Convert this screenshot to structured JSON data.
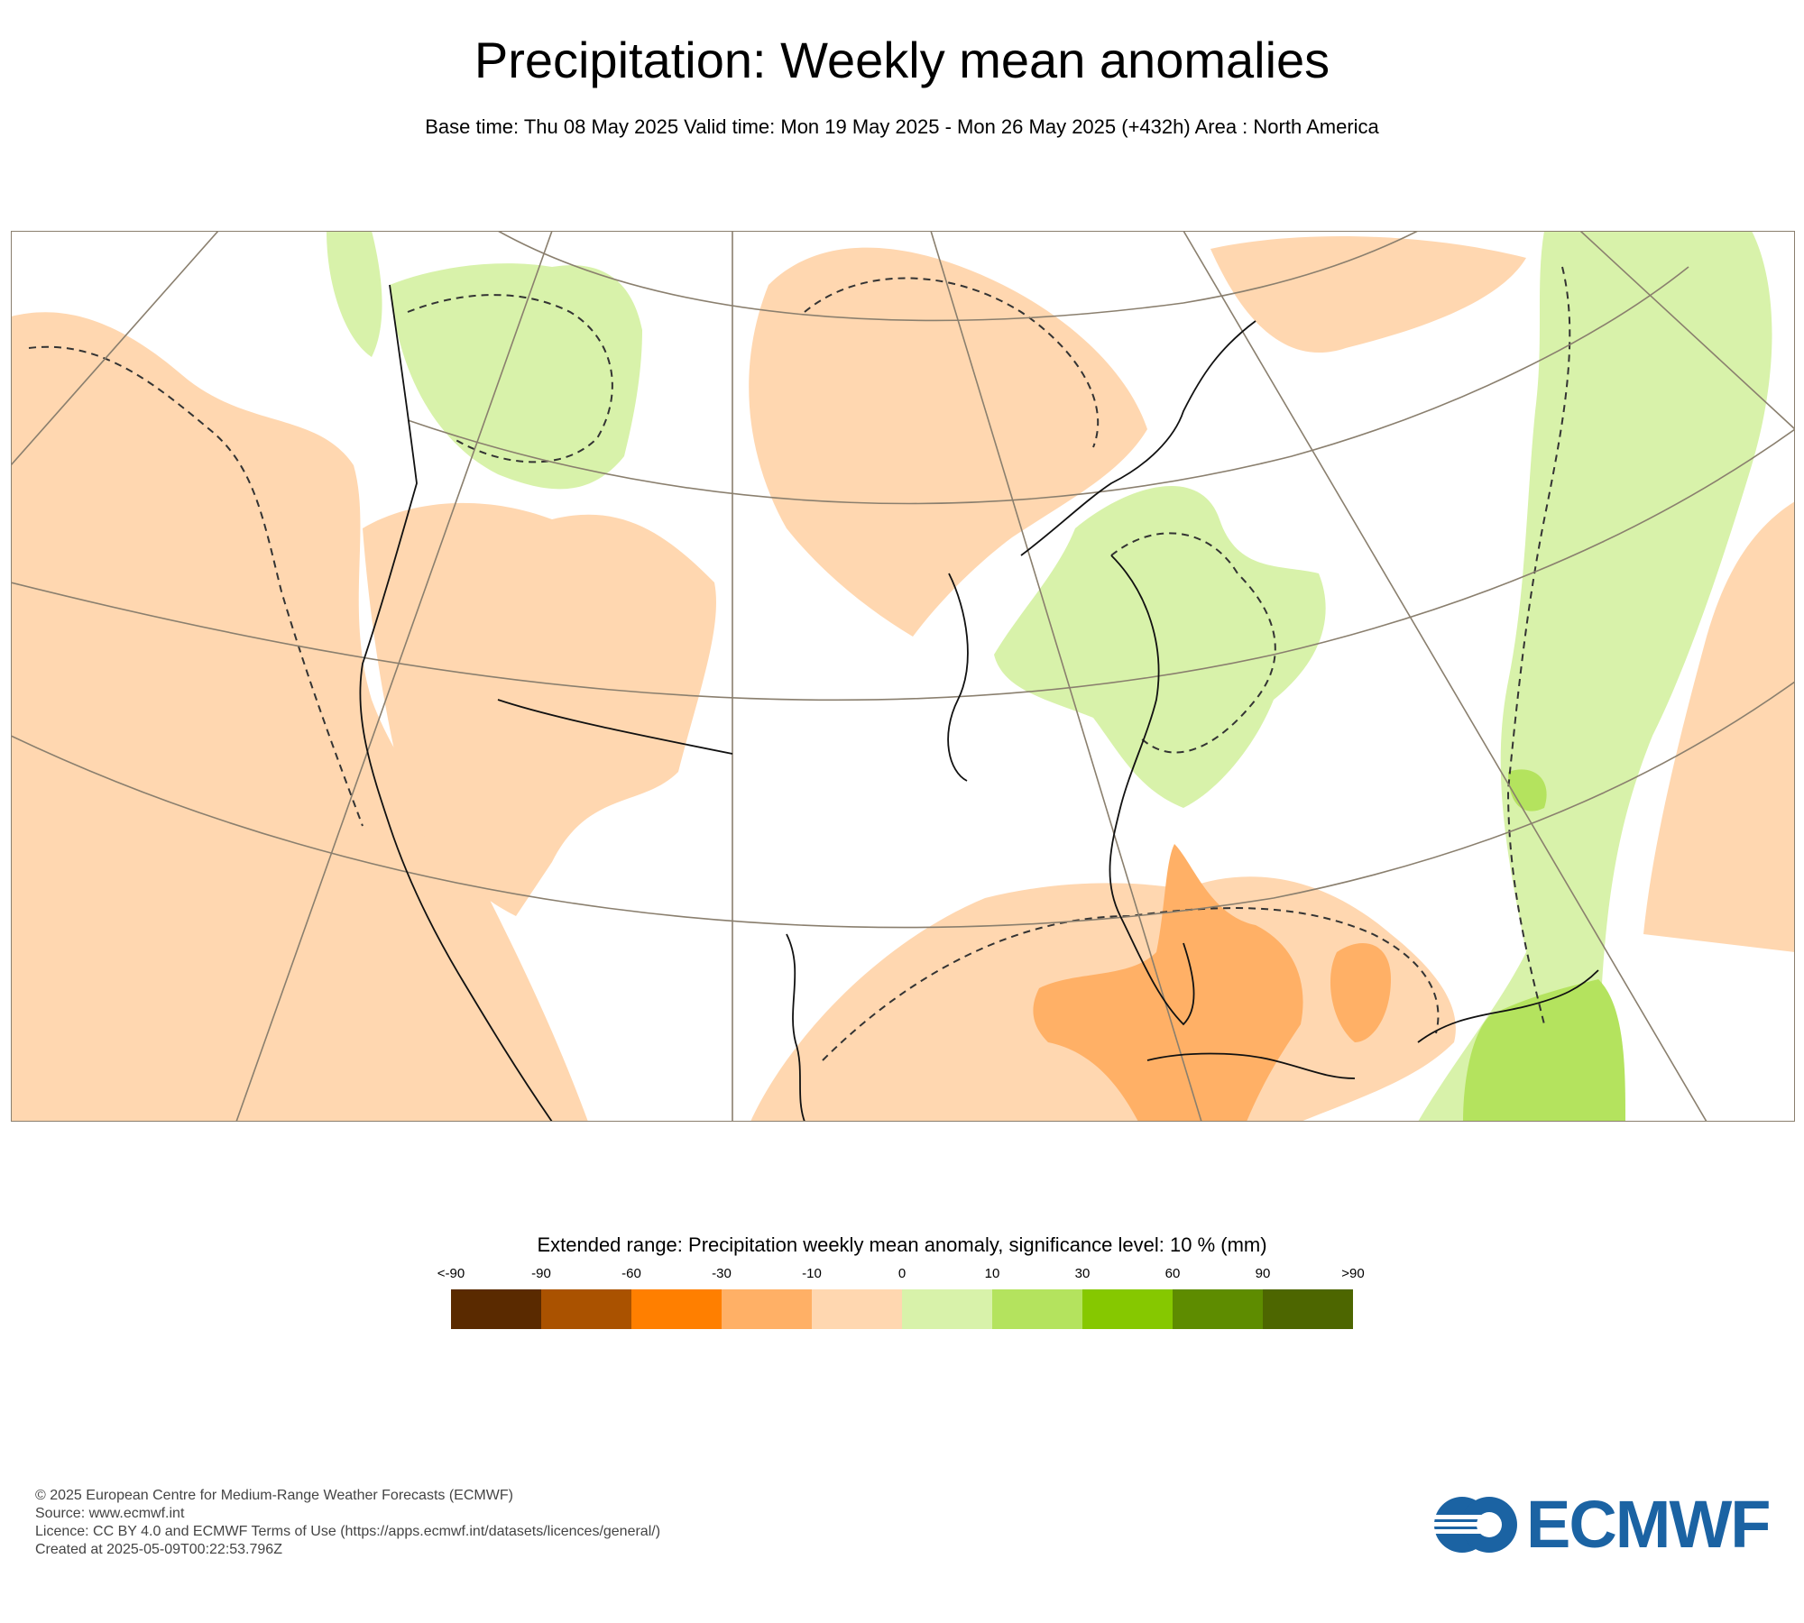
{
  "header": {
    "title": "Precipitation: Weekly mean anomalies",
    "subtitle": "Base time: Thu 08 May 2025 Valid time: Mon 19 May 2025 - Mon 26 May 2025 (+432h) Area : North America"
  },
  "map": {
    "region": "North America",
    "layers": [
      "precipitation anomaly shading",
      "significance contours (dashed)",
      "coastlines",
      "graticule"
    ]
  },
  "legend": {
    "title": "Extended range: Precipitation weekly mean anomaly, significance level: 10 % (mm)",
    "ticks": [
      "<-90",
      "-90",
      "-60",
      "-30",
      "-10",
      "0",
      "10",
      "30",
      "60",
      "90",
      ">90"
    ],
    "colors": [
      "#5a2a00",
      "#aa5200",
      "#ff7f00",
      "#ffb066",
      "#ffd7b0",
      "#d8f2aa",
      "#b4e35e",
      "#86c800",
      "#5e8c00",
      "#4d6600"
    ]
  },
  "footer": {
    "copyright": "© 2025 European Centre for Medium-Range Weather Forecasts (ECMWF)",
    "source": "Source: www.ecmwf.int",
    "licence": "Licence: CC BY 4.0 and ECMWF Terms of Use (https://apps.ecmwf.int/datasets/licences/general/)",
    "created": "Created at 2025-05-09T00:22:53.796Z"
  },
  "logo": {
    "text": "ECMWF",
    "color": "#1b63a3"
  }
}
